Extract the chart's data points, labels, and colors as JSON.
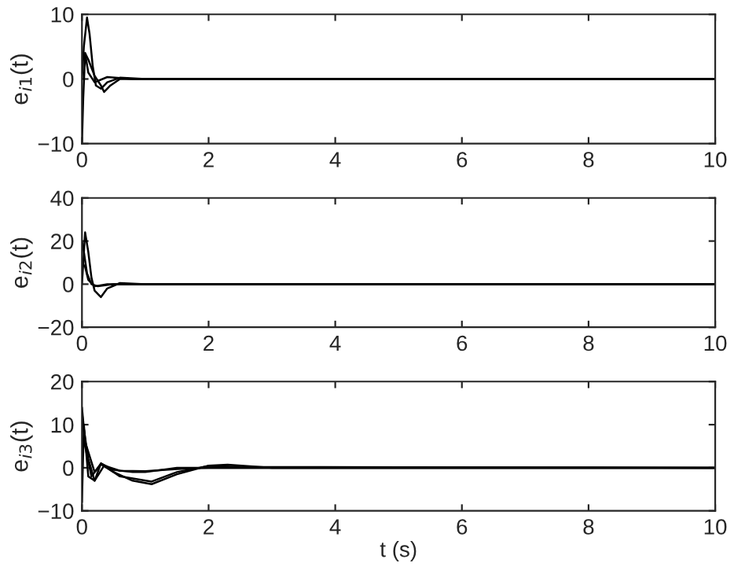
{
  "chart_data": [
    {
      "type": "line",
      "ylabel": "e$_{i1}$(t)",
      "xlim": [
        0,
        10
      ],
      "xticks": [
        0,
        2,
        4,
        6,
        8,
        10
      ],
      "ylim": [
        -10,
        10
      ],
      "yticks": [
        -10,
        0,
        10
      ],
      "grid": false,
      "legend": false,
      "line_style": "solid",
      "series": [
        {
          "color": "#000000",
          "x": [
            0,
            0.03,
            0.08,
            0.12,
            0.17,
            0.22,
            0.3,
            0.4,
            0.6,
            1,
            10
          ],
          "values": [
            0,
            5,
            9.5,
            7,
            2,
            -1,
            -1.5,
            -0.5,
            0.2,
            0,
            0
          ]
        },
        {
          "color": "#000000",
          "x": [
            0,
            0.02,
            0.05,
            0.1,
            0.2,
            0.3,
            0.35,
            0.45,
            0.6,
            1,
            10
          ],
          "values": [
            -10,
            -3,
            4,
            3,
            0.5,
            -1,
            -2,
            -1,
            0,
            0,
            0
          ]
        },
        {
          "color": "#000000",
          "x": [
            0,
            0.05,
            0.1,
            0.2,
            0.4,
            0.8,
            10
          ],
          "values": [
            3,
            4,
            1,
            -0.5,
            0.3,
            0,
            0
          ]
        }
      ]
    },
    {
      "type": "line",
      "ylabel": "e$_{i2}$(t)",
      "xlim": [
        0,
        10
      ],
      "xticks": [
        0,
        2,
        4,
        6,
        8,
        10
      ],
      "ylim": [
        -20,
        40
      ],
      "yticks": [
        -20,
        0,
        20,
        40
      ],
      "grid": false,
      "legend": false,
      "line_style": "solid",
      "series": [
        {
          "color": "#000000",
          "x": [
            0,
            0.05,
            0.1,
            0.15,
            0.2,
            0.3,
            0.4,
            0.6,
            1,
            10
          ],
          "values": [
            0,
            24,
            15,
            3,
            -3,
            -6,
            -2,
            0.5,
            0,
            0
          ]
        },
        {
          "color": "#000000",
          "x": [
            0,
            0.03,
            0.08,
            0.15,
            0.25,
            0.5,
            10
          ],
          "values": [
            20,
            15,
            5,
            0,
            -1,
            0,
            0
          ]
        },
        {
          "color": "#000000",
          "x": [
            0,
            0.05,
            0.1,
            0.2,
            0.4,
            10
          ],
          "values": [
            10,
            8,
            2,
            -1,
            0,
            0
          ]
        }
      ]
    },
    {
      "type": "line",
      "xlabel": "t (s)",
      "ylabel": "e$_{i3}$(t)",
      "xlim": [
        0,
        10
      ],
      "xticks": [
        0,
        2,
        4,
        6,
        8,
        10
      ],
      "ylim": [
        -10,
        20
      ],
      "yticks": [
        -10,
        0,
        10,
        20
      ],
      "grid": false,
      "legend": false,
      "line_style": "solid",
      "series": [
        {
          "color": "#000000",
          "x": [
            0,
            0.05,
            0.15,
            0.3,
            0.5,
            0.8,
            1.1,
            1.5,
            2,
            2.3,
            3,
            10
          ],
          "values": [
            13,
            5,
            -2,
            0.8,
            -1,
            -3,
            -3.8,
            -1.5,
            0.5,
            0.7,
            0,
            0
          ]
        },
        {
          "color": "#000000",
          "x": [
            0,
            0.05,
            0.2,
            0.3,
            0.6,
            1.1,
            1.5,
            2,
            2.5,
            10
          ],
          "values": [
            14,
            6,
            -1,
            1,
            -2,
            -3.2,
            -1,
            0.4,
            0.2,
            0
          ]
        },
        {
          "color": "#000000",
          "x": [
            0,
            0.03,
            0.1,
            0.2,
            0.3,
            0.5,
            0.8,
            1,
            1.5,
            10
          ],
          "values": [
            -8,
            10,
            -2,
            -3,
            1,
            -0.5,
            -1,
            -1,
            0,
            0
          ]
        },
        {
          "color": "#000000",
          "x": [
            0,
            0.1,
            0.2,
            0.35,
            0.6,
            1,
            1.5,
            2,
            10
          ],
          "values": [
            12,
            2,
            -3,
            0.5,
            -0.7,
            -0.8,
            -0.3,
            0,
            0
          ]
        }
      ]
    }
  ]
}
